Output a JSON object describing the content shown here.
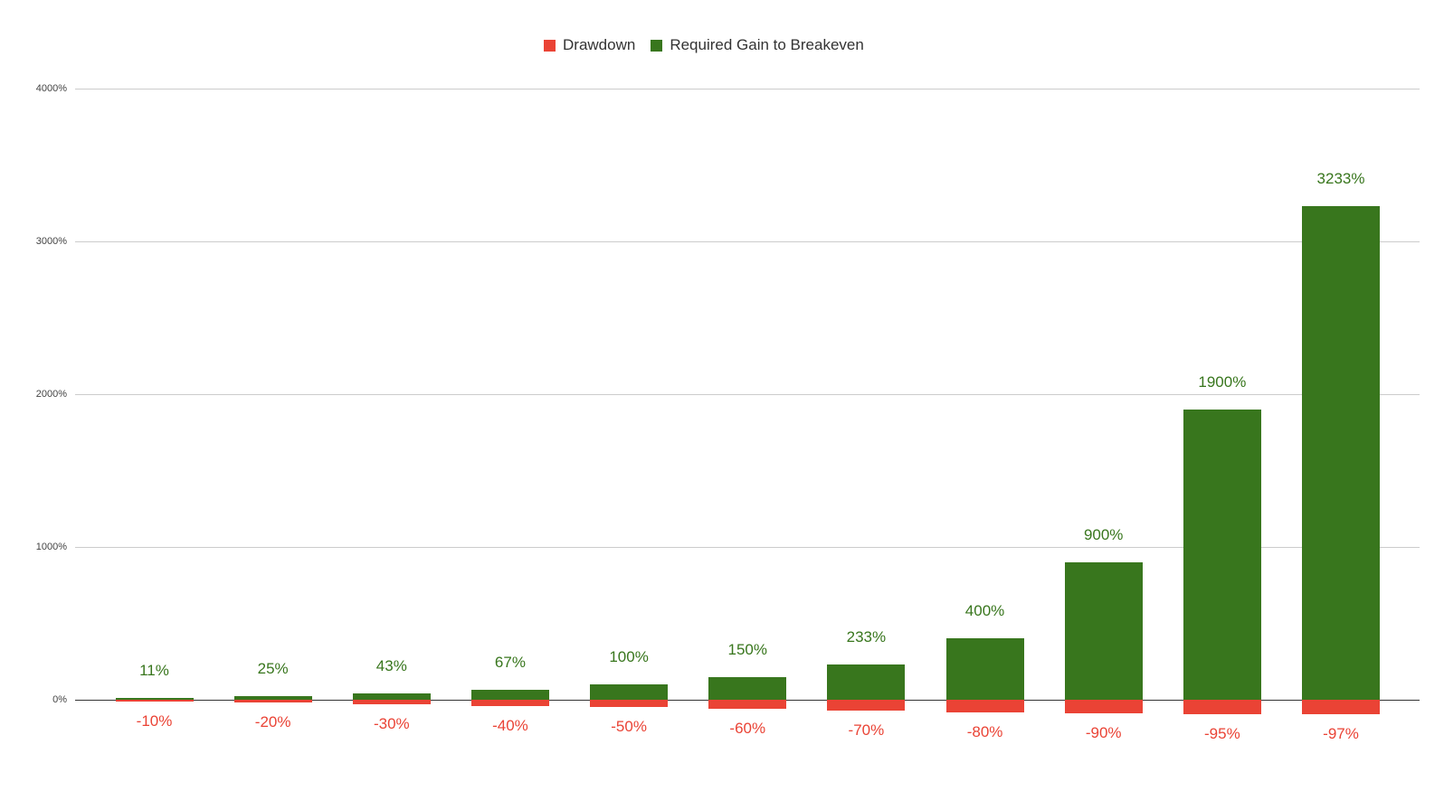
{
  "legend": {
    "items": [
      {
        "label": "Drawdown",
        "color": "#ea4335"
      },
      {
        "label": "Required Gain to Breakeven",
        "color": "#38761d"
      }
    ]
  },
  "chart_data": {
    "type": "bar",
    "title": "",
    "xlabel": "",
    "ylabel": "",
    "categories": [
      "-10%",
      "-20%",
      "-30%",
      "-40%",
      "-50%",
      "-60%",
      "-70%",
      "-80%",
      "-90%",
      "-95%",
      "-97%"
    ],
    "series": [
      {
        "name": "Drawdown",
        "color": "#ea4335",
        "values": [
          -10,
          -20,
          -30,
          -40,
          -50,
          -60,
          -70,
          -80,
          -90,
          -95,
          -97
        ],
        "labels": [
          "-10%",
          "-20%",
          "-30%",
          "-40%",
          "-50%",
          "-60%",
          "-70%",
          "-80%",
          "-90%",
          "-95%",
          "-97%"
        ]
      },
      {
        "name": "Required Gain to Breakeven",
        "color": "#38761d",
        "values": [
          11,
          25,
          43,
          67,
          100,
          150,
          233,
          400,
          900,
          1900,
          3233
        ],
        "labels": [
          "11%",
          "25%",
          "43%",
          "67%",
          "100%",
          "150%",
          "233%",
          "400%",
          "900%",
          "1900%",
          "3233%"
        ]
      }
    ],
    "ylim": [
      0,
      4000
    ],
    "y_ticks": [
      0,
      1000,
      2000,
      3000,
      4000
    ],
    "y_tick_labels": [
      "0%",
      "1000%",
      "2000%",
      "3000%",
      "4000%"
    ],
    "grid": true,
    "legend_position": "top",
    "axis_color": "#333333",
    "gridline_color": "#cccccc",
    "tick_label_color": "#444444"
  }
}
